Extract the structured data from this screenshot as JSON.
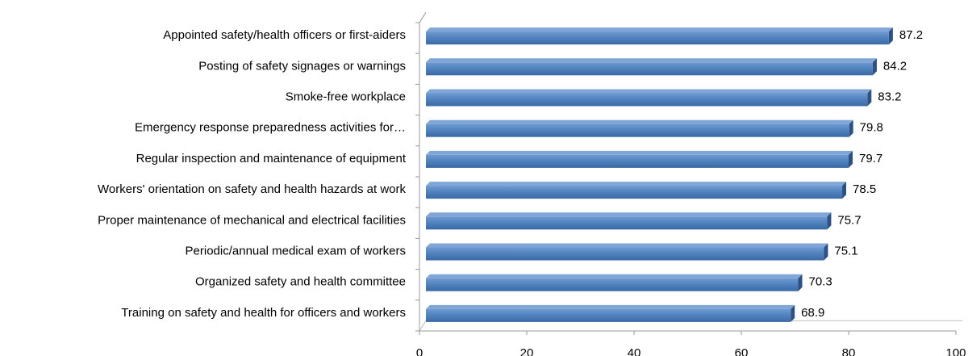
{
  "chart_data": {
    "type": "bar",
    "orientation": "horizontal",
    "categories": [
      "Appointed safety/health officers or first-aiders",
      "Posting of safety signages or warnings",
      "Smoke-free workplace",
      "Emergency response preparedness activities for…",
      "Regular inspection and maintenance of equipment",
      "Workers' orientation on safety and health hazards at work",
      "Proper maintenance of mechanical and electrical facilities",
      "Periodic/annual medical exam of workers",
      "Organized safety and health committee",
      "Training on safety and health for officers and workers"
    ],
    "values": [
      87.2,
      84.2,
      83.2,
      79.8,
      79.7,
      78.5,
      75.7,
      75.1,
      70.3,
      68.9
    ],
    "color": "#4f81bd",
    "xlim": [
      0,
      100
    ],
    "xticks": [
      0,
      20,
      40,
      60,
      80,
      100
    ],
    "grid": false
  }
}
